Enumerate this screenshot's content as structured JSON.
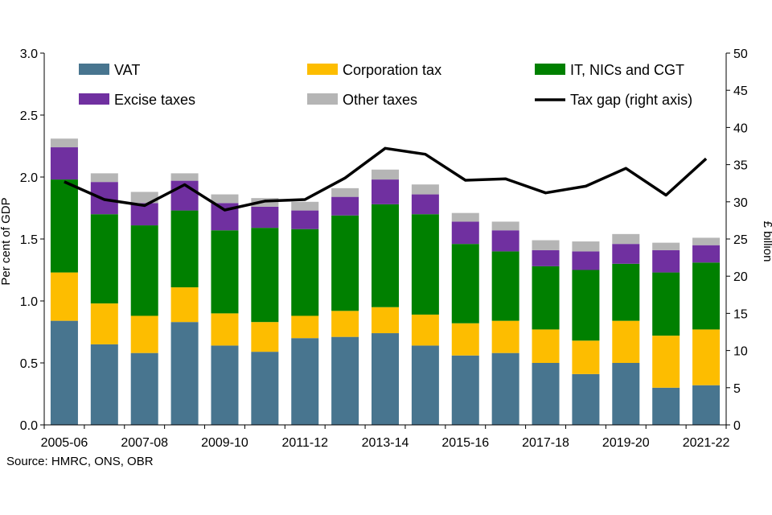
{
  "chart_data": {
    "type": "bar",
    "stacked": true,
    "categories": [
      "2005-06",
      "2006-07",
      "2007-08",
      "2008-09",
      "2009-10",
      "2010-11",
      "2011-12",
      "2012-13",
      "2013-14",
      "2014-15",
      "2015-16",
      "2016-17",
      "2017-18",
      "2018-19",
      "2019-20",
      "2020-21",
      "2021-22"
    ],
    "x_tick_labels": [
      "2005-06",
      "2007-08",
      "2009-10",
      "2011-12",
      "2013-14",
      "2015-16",
      "2017-18",
      "2019-20",
      "2021-22"
    ],
    "series": [
      {
        "name": "VAT",
        "color": "#48758f",
        "values": [
          0.84,
          0.65,
          0.58,
          0.83,
          0.64,
          0.59,
          0.7,
          0.71,
          0.74,
          0.64,
          0.56,
          0.58,
          0.5,
          0.41,
          0.5,
          0.3,
          0.32
        ]
      },
      {
        "name": "Corporation tax",
        "color": "#fdbd00",
        "values": [
          0.39,
          0.33,
          0.3,
          0.28,
          0.26,
          0.24,
          0.18,
          0.21,
          0.21,
          0.25,
          0.26,
          0.26,
          0.27,
          0.27,
          0.34,
          0.42,
          0.45
        ]
      },
      {
        "name": "IT, NICs and CGT",
        "color": "#008000",
        "values": [
          0.75,
          0.72,
          0.73,
          0.62,
          0.67,
          0.76,
          0.7,
          0.77,
          0.83,
          0.81,
          0.64,
          0.56,
          0.51,
          0.57,
          0.46,
          0.51,
          0.54
        ]
      },
      {
        "name": "Excise taxes",
        "color": "#7030a0",
        "values": [
          0.26,
          0.26,
          0.18,
          0.24,
          0.22,
          0.17,
          0.15,
          0.15,
          0.2,
          0.16,
          0.18,
          0.17,
          0.13,
          0.15,
          0.16,
          0.18,
          0.14
        ]
      },
      {
        "name": "Other taxes",
        "color": "#b5b5b5",
        "values": [
          0.07,
          0.07,
          0.09,
          0.06,
          0.07,
          0.07,
          0.07,
          0.07,
          0.08,
          0.08,
          0.07,
          0.07,
          0.08,
          0.08,
          0.08,
          0.06,
          0.06
        ]
      }
    ],
    "line_series": {
      "name": "Tax gap (right axis)",
      "color": "#000000",
      "axis": "right",
      "values": [
        32.7,
        30.3,
        29.5,
        32.3,
        28.9,
        30.1,
        30.3,
        33.2,
        37.2,
        36.4,
        32.9,
        33.1,
        31.2,
        32.1,
        34.5,
        30.9,
        35.8
      ]
    },
    "ylabel": "Per cent of GDP",
    "y2label": "£ billion",
    "ylim": [
      0,
      3.0
    ],
    "y2lim": [
      0,
      50
    ],
    "y_ticks": [
      "0.0",
      "0.5",
      "1.0",
      "1.5",
      "2.0",
      "2.5",
      "3.0"
    ],
    "y2_ticks": [
      "0",
      "5",
      "10",
      "15",
      "20",
      "25",
      "30",
      "35",
      "40",
      "45",
      "50"
    ],
    "grid": false,
    "legend_position": "top"
  },
  "source": "Source: HMRC, ONS, OBR"
}
